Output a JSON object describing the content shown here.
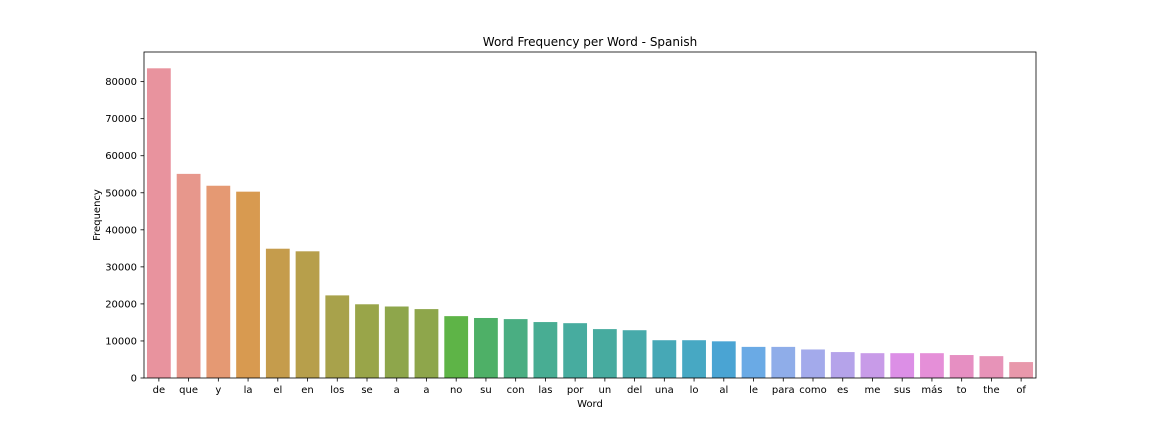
{
  "chart_data": {
    "type": "bar",
    "title": "Word Frequency per Word - Spanish",
    "xlabel": "Word",
    "ylabel": "Frequency",
    "ylim": [
      0,
      88000
    ],
    "yticks": [
      0,
      10000,
      20000,
      30000,
      40000,
      50000,
      60000,
      70000,
      80000
    ],
    "grid": false,
    "categories": [
      "de",
      "que",
      "y",
      "la",
      "el",
      "en",
      "los",
      "se",
      "a",
      "a",
      "no",
      "su",
      "con",
      "las",
      "por",
      "un",
      "del",
      "una",
      "lo",
      "al",
      "le",
      "para",
      "como",
      "es",
      "me",
      "sus",
      "más",
      "to",
      "the",
      "of"
    ],
    "values": [
      83600,
      55100,
      51900,
      50300,
      34900,
      34200,
      22300,
      19900,
      19300,
      18600,
      16700,
      16200,
      15900,
      15100,
      14800,
      13200,
      12900,
      10200,
      10200,
      9900,
      8400,
      8400,
      7700,
      7000,
      6700,
      6700,
      6700,
      6200,
      5900,
      4300
    ],
    "colors": [
      "#e8939e",
      "#e7978c",
      "#e59973",
      "#d89a50",
      "#c59c4c",
      "#b79f4b",
      "#a8a24b",
      "#99a549",
      "#8ea64b",
      "#8ea64b",
      "#5eb447",
      "#4eb067",
      "#4aae82",
      "#48ad93",
      "#47ac9f",
      "#47ab9f",
      "#47aaaa",
      "#46a8b6",
      "#47a8c3",
      "#4aa4d3",
      "#6aaae5",
      "#8fade9",
      "#a3aaeb",
      "#b5a3ea",
      "#c89be8",
      "#dc8fe6",
      "#e58fd8",
      "#e68fc2",
      "#e793b8",
      "#e898ab"
    ]
  }
}
